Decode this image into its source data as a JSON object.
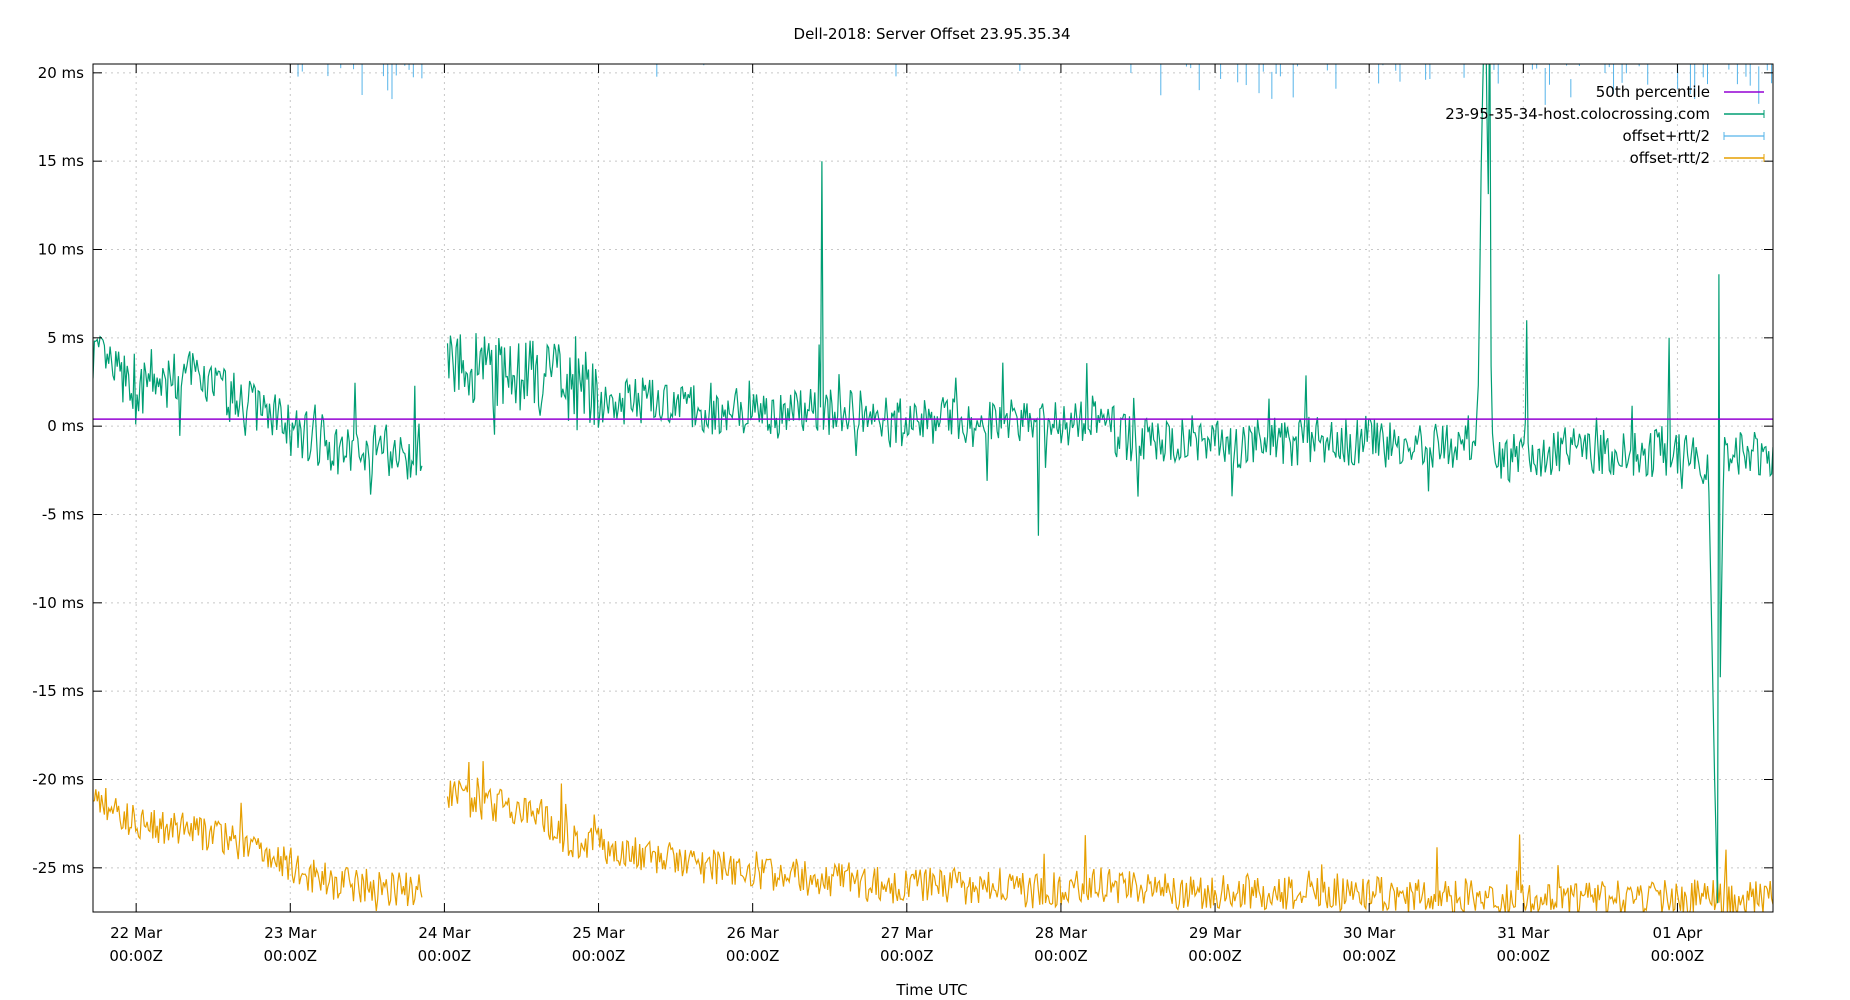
{
  "chart_data": {
    "type": "line",
    "title": "Dell-2018: Server Offset 23.95.35.34",
    "xlabel": "Time UTC",
    "ylabel": "",
    "ylim": [
      -27.5,
      20.5
    ],
    "xlim_days": [
      21.72,
      32.62
    ],
    "grid": true,
    "legend_position": "top-right",
    "y_ticks": [
      {
        "value": 20,
        "label": "20 ms"
      },
      {
        "value": 15,
        "label": "15 ms"
      },
      {
        "value": 10,
        "label": "10 ms"
      },
      {
        "value": 5,
        "label": "5 ms"
      },
      {
        "value": 0,
        "label": "0 ms"
      },
      {
        "value": -5,
        "label": "-5 ms"
      },
      {
        "value": -10,
        "label": "-10 ms"
      },
      {
        "value": -15,
        "label": "-15 ms"
      },
      {
        "value": -20,
        "label": "-20 ms"
      },
      {
        "value": -25,
        "label": "-25 ms"
      }
    ],
    "x_ticks": [
      {
        "day": 22,
        "label": "22 Mar",
        "sublabel": "00:00Z"
      },
      {
        "day": 23,
        "label": "23 Mar",
        "sublabel": "00:00Z"
      },
      {
        "day": 24,
        "label": "24 Mar",
        "sublabel": "00:00Z"
      },
      {
        "day": 25,
        "label": "25 Mar",
        "sublabel": "00:00Z"
      },
      {
        "day": 26,
        "label": "26 Mar",
        "sublabel": "00:00Z"
      },
      {
        "day": 27,
        "label": "27 Mar",
        "sublabel": "00:00Z"
      },
      {
        "day": 28,
        "label": "28 Mar",
        "sublabel": "00:00Z"
      },
      {
        "day": 29,
        "label": "29 Mar",
        "sublabel": "00:00Z"
      },
      {
        "day": 30,
        "label": "30 Mar",
        "sublabel": "00:00Z"
      },
      {
        "day": 31,
        "label": "31 Mar",
        "sublabel": "00:00Z"
      },
      {
        "day": 32,
        "label": "01 Apr",
        "sublabel": "00:00Z"
      }
    ],
    "percentile_50": 0.4,
    "series": [
      {
        "name": "50th percentile",
        "color": "#9400d3",
        "style": "hline"
      },
      {
        "name": "23-95-35-34-host.colocrossing.com",
        "color": "#009e73",
        "style": "line",
        "points": [
          [
            21.72,
            4.2
          ],
          [
            21.8,
            3.5
          ],
          [
            21.9,
            2.8
          ],
          [
            22.0,
            1.5
          ],
          [
            22.1,
            2.9
          ],
          [
            22.2,
            2.3
          ],
          [
            22.3,
            3.1
          ],
          [
            22.4,
            2.6
          ],
          [
            22.5,
            2.5
          ],
          [
            22.6,
            1.6
          ],
          [
            22.7,
            1.7
          ],
          [
            22.8,
            1.0
          ],
          [
            22.9,
            0.8
          ],
          [
            23.0,
            -0.3
          ],
          [
            23.1,
            -0.6
          ],
          [
            23.2,
            -0.8
          ],
          [
            23.3,
            -1.2
          ],
          [
            23.4,
            -1.6
          ],
          [
            23.5,
            -1.3
          ],
          [
            23.6,
            -1.2
          ],
          [
            23.7,
            -1.6
          ],
          [
            23.8,
            -1.5
          ],
          [
            23.9,
            -0.8
          ],
          [
            24.0,
            4.3
          ],
          [
            24.1,
            3.8
          ],
          [
            24.2,
            3.3
          ],
          [
            24.3,
            3.3
          ],
          [
            24.4,
            2.8
          ],
          [
            24.5,
            2.9
          ],
          [
            24.6,
            2.6
          ],
          [
            24.7,
            3.3
          ],
          [
            24.8,
            1.6
          ],
          [
            24.9,
            2.2
          ],
          [
            25.0,
            1.6
          ],
          [
            25.1,
            1.3
          ],
          [
            25.2,
            1.4
          ],
          [
            25.3,
            1.5
          ],
          [
            25.4,
            1.1
          ],
          [
            25.5,
            1.0
          ],
          [
            25.6,
            1.1
          ],
          [
            25.7,
            0.9
          ],
          [
            25.8,
            0.8
          ],
          [
            25.9,
            0.8
          ],
          [
            26.0,
            0.7
          ],
          [
            26.1,
            0.9
          ],
          [
            26.2,
            0.5
          ],
          [
            26.3,
            1.1
          ],
          [
            26.4,
            0.9
          ],
          [
            26.5,
            0.8
          ],
          [
            26.6,
            0.7
          ],
          [
            26.7,
            0.7
          ],
          [
            26.8,
            0.2
          ],
          [
            26.9,
            0.4
          ],
          [
            27.0,
            0.1
          ],
          [
            27.1,
            0.4
          ],
          [
            27.2,
            0.2
          ],
          [
            27.3,
            0.5
          ],
          [
            27.4,
            -0.2
          ],
          [
            27.5,
            -0.1
          ],
          [
            27.6,
            0.4
          ],
          [
            27.7,
            0.3
          ],
          [
            27.8,
            0.5
          ],
          [
            27.9,
            0.0
          ],
          [
            28.0,
            0.2
          ],
          [
            28.1,
            0.3
          ],
          [
            28.2,
            0.4
          ],
          [
            28.3,
            0.1
          ],
          [
            28.4,
            -0.5
          ],
          [
            28.5,
            -0.9
          ],
          [
            28.6,
            -0.7
          ],
          [
            28.7,
            -0.9
          ],
          [
            28.8,
            -0.5
          ],
          [
            28.9,
            -0.8
          ],
          [
            29.0,
            -0.8
          ],
          [
            29.1,
            -0.9
          ],
          [
            29.2,
            -1.1
          ],
          [
            29.3,
            -1.0
          ],
          [
            29.4,
            -0.6
          ],
          [
            29.5,
            -1.1
          ],
          [
            29.6,
            -0.7
          ],
          [
            29.7,
            -0.9
          ],
          [
            29.8,
            -0.8
          ],
          [
            29.9,
            -1.0
          ],
          [
            30.0,
            -0.6
          ],
          [
            30.1,
            -1.1
          ],
          [
            30.2,
            -1.0
          ],
          [
            30.3,
            -1.2
          ],
          [
            30.4,
            -1.0
          ],
          [
            30.5,
            -1.3
          ],
          [
            30.6,
            -0.7
          ],
          [
            30.7,
            -0.4
          ],
          [
            30.75,
            25
          ],
          [
            30.8,
            -1.5
          ],
          [
            30.9,
            -1.9
          ],
          [
            31.0,
            -1.1
          ],
          [
            31.1,
            -1.5
          ],
          [
            31.2,
            -1.5
          ],
          [
            31.3,
            -1.0
          ],
          [
            31.4,
            -1.5
          ],
          [
            31.5,
            -1.4
          ],
          [
            31.6,
            -1.6
          ],
          [
            31.7,
            -1.5
          ],
          [
            31.8,
            -1.9
          ],
          [
            31.9,
            -1.3
          ],
          [
            32.0,
            -1.9
          ],
          [
            32.1,
            -1.8
          ],
          [
            32.2,
            -2.1
          ],
          [
            32.26,
            -27
          ],
          [
            32.3,
            -1.8
          ],
          [
            32.4,
            -1.6
          ],
          [
            32.5,
            -1.6
          ],
          [
            32.6,
            -1.9
          ]
        ]
      },
      {
        "name": "offset+rtt/2",
        "color": "#56b4e9",
        "style": "errorbar"
      },
      {
        "name": "offset-rtt/2",
        "color": "#e69f00",
        "style": "line",
        "points": [
          [
            21.72,
            -20.8
          ],
          [
            21.9,
            -22.0
          ],
          [
            22.1,
            -22.6
          ],
          [
            22.3,
            -22.8
          ],
          [
            22.5,
            -23.1
          ],
          [
            22.7,
            -23.8
          ],
          [
            22.9,
            -24.3
          ],
          [
            23.1,
            -25.3
          ],
          [
            23.3,
            -25.9
          ],
          [
            23.5,
            -26.0
          ],
          [
            23.7,
            -26.2
          ],
          [
            23.85,
            -26.3
          ],
          [
            24.0,
            -20.6
          ],
          [
            24.2,
            -21.3
          ],
          [
            24.4,
            -21.6
          ],
          [
            24.6,
            -22.0
          ],
          [
            24.8,
            -23.4
          ],
          [
            25.0,
            -23.7
          ],
          [
            25.2,
            -24.2
          ],
          [
            25.4,
            -24.4
          ],
          [
            25.6,
            -24.8
          ],
          [
            25.8,
            -25.0
          ],
          [
            26.0,
            -25.4
          ],
          [
            26.2,
            -25.3
          ],
          [
            26.4,
            -25.7
          ],
          [
            26.6,
            -25.6
          ],
          [
            26.8,
            -25.9
          ],
          [
            27.0,
            -26.0
          ],
          [
            27.2,
            -25.9
          ],
          [
            27.4,
            -26.1
          ],
          [
            27.6,
            -25.8
          ],
          [
            27.8,
            -26.3
          ],
          [
            28.0,
            -26.2
          ],
          [
            28.2,
            -25.9
          ],
          [
            28.4,
            -26.1
          ],
          [
            28.6,
            -26.2
          ],
          [
            28.8,
            -26.4
          ],
          [
            29.0,
            -26.3
          ],
          [
            29.2,
            -26.3
          ],
          [
            29.4,
            -26.5
          ],
          [
            29.6,
            -26.4
          ],
          [
            29.8,
            -26.6
          ],
          [
            30.0,
            -26.4
          ],
          [
            30.2,
            -26.6
          ],
          [
            30.4,
            -26.7
          ],
          [
            30.6,
            -26.5
          ],
          [
            30.8,
            -26.8
          ],
          [
            31.0,
            -26.6
          ],
          [
            31.2,
            -26.7
          ],
          [
            31.4,
            -26.8
          ],
          [
            31.6,
            -26.7
          ],
          [
            31.8,
            -26.6
          ],
          [
            32.0,
            -26.7
          ],
          [
            32.2,
            -26.6
          ],
          [
            32.4,
            -26.8
          ],
          [
            32.6,
            -26.6
          ]
        ]
      }
    ]
  }
}
